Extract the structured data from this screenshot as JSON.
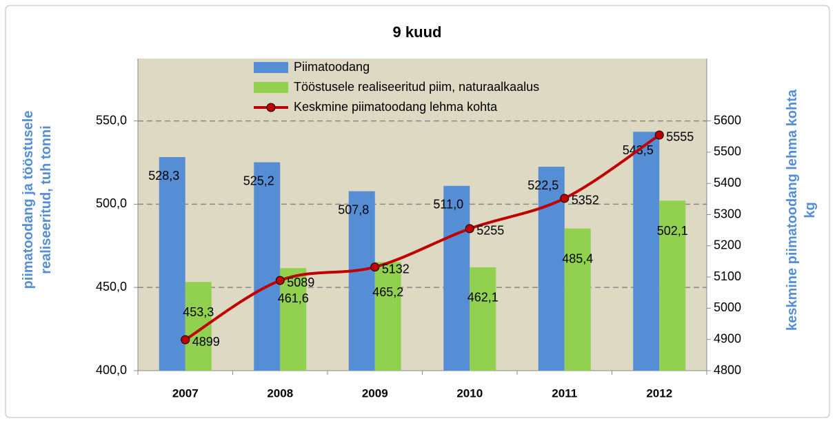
{
  "chart_data": {
    "type": "bar_line",
    "title": "9 kuud",
    "y_label": "piimatoodang ja tööstusele realiseeritud, tuh tonni",
    "y2_label": "keskmine piimatoodang lehma kohta kg",
    "categories": [
      "2007",
      "2008",
      "2009",
      "2010",
      "2011",
      "2012"
    ],
    "series": [
      {
        "name": "Piimatoodang",
        "type": "bar",
        "color": "#558ed5",
        "values": [
          528.3,
          525.2,
          507.8,
          511.0,
          522.5,
          543.5
        ],
        "value_labels": [
          "528,3",
          "525,2",
          "507,8",
          "511,0",
          "522,5",
          "543,5"
        ]
      },
      {
        "name": "Tööstusele realiseeritud piim, naturaalkaalus",
        "type": "bar",
        "color": "#92d050",
        "values": [
          453.3,
          461.6,
          465.2,
          462.1,
          485.4,
          502.1
        ],
        "value_labels": [
          "453,3",
          "461,6",
          "465,2",
          "462,1",
          "485,4",
          "502,1"
        ]
      },
      {
        "name": "Keskmine piimatoodang lehma kohta",
        "type": "line",
        "axis": "y2",
        "color": "#c00000",
        "values": [
          4899,
          5089,
          5132,
          5255,
          5352,
          5555
        ]
      }
    ],
    "ylim": [
      400,
      587.5
    ],
    "yticks": [
      {
        "value": 400,
        "label": "400,0"
      },
      {
        "value": 450,
        "label": "450,0"
      },
      {
        "value": 500,
        "label": "500,0"
      },
      {
        "value": 550,
        "label": "550,0"
      }
    ],
    "y2lim": [
      4800,
      5800
    ],
    "y2ticks": [
      4800,
      4900,
      5000,
      5100,
      5200,
      5300,
      5400,
      5500,
      5600
    ],
    "grid": true,
    "legend": "top"
  }
}
